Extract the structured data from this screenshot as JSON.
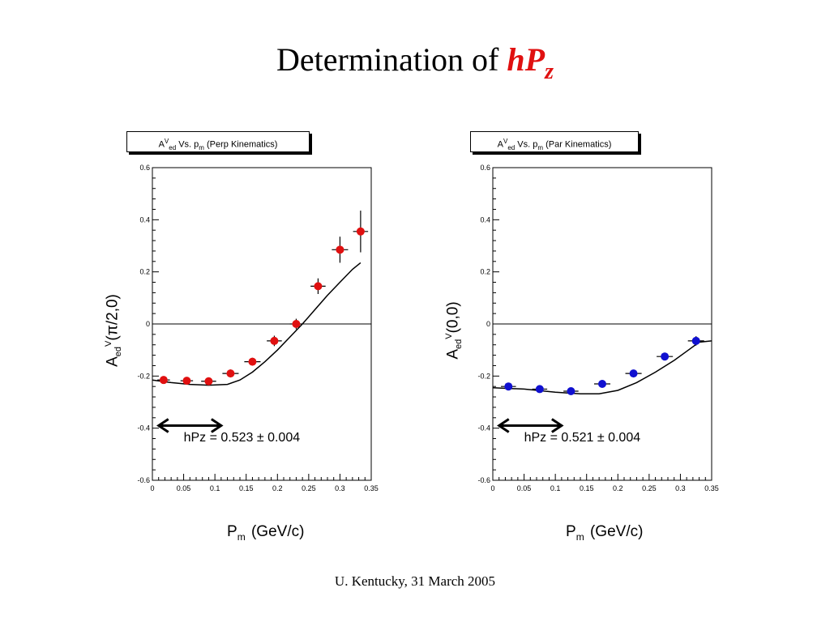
{
  "title": {
    "text": "Determination of",
    "highlight": "hP",
    "subscript": "z"
  },
  "footer": "U. Kentucky, 31 March 2005",
  "colors": {
    "left_marker": "#e01010",
    "right_marker": "#1010d0",
    "title_highlight": "#e01010"
  },
  "chart_data": [
    {
      "type": "scatter",
      "box_title": {
        "a": "A",
        "sup": "V",
        "sub": "ed",
        "mid": " Vs. p",
        "sub2": "m",
        "tail": " (Perp Kinematics)"
      },
      "ylabel": {
        "a": "A",
        "sup": "V",
        "sub": "ed",
        "arg": "(π/2,0)"
      },
      "xlabel": {
        "main": "P",
        "sub": "m",
        "unit": "(GeV/c)"
      },
      "xlim": [
        0,
        0.35
      ],
      "ylim": [
        -0.6,
        0.6
      ],
      "xticks": [
        "0",
        "0.05",
        "0.1",
        "0.15",
        "0.2",
        "0.25",
        "0.3",
        "0.35"
      ],
      "yticks": [
        "-0.6",
        "-0.4",
        "-0.2",
        "0",
        "0.2",
        "0.4",
        "0.6"
      ],
      "zero_line": true,
      "annotation": "hPz = 0.523 ± 0.004",
      "arrow": [
        0.01,
        0.11,
        -0.39
      ],
      "marker_color": "#e01010",
      "points": [
        {
          "x": 0.018,
          "y": -0.215,
          "xerr": 0.01,
          "yerr": 0.012
        },
        {
          "x": 0.055,
          "y": -0.218,
          "xerr": 0.01,
          "yerr": 0.012
        },
        {
          "x": 0.09,
          "y": -0.22,
          "xerr": 0.012,
          "yerr": 0.012
        },
        {
          "x": 0.125,
          "y": -0.19,
          "xerr": 0.013,
          "yerr": 0.015
        },
        {
          "x": 0.16,
          "y": -0.145,
          "xerr": 0.013,
          "yerr": 0.015
        },
        {
          "x": 0.195,
          "y": -0.065,
          "xerr": 0.012,
          "yerr": 0.02
        },
        {
          "x": 0.23,
          "y": 0.0,
          "xerr": 0.01,
          "yerr": 0.02
        },
        {
          "x": 0.265,
          "y": 0.145,
          "xerr": 0.012,
          "yerr": 0.03
        },
        {
          "x": 0.3,
          "y": 0.285,
          "xerr": 0.013,
          "yerr": 0.05
        },
        {
          "x": 0.333,
          "y": 0.355,
          "xerr": 0.012,
          "yerr": 0.08
        }
      ],
      "curve": [
        [
          0,
          -0.215
        ],
        [
          0.03,
          -0.225
        ],
        [
          0.06,
          -0.232
        ],
        [
          0.09,
          -0.235
        ],
        [
          0.12,
          -0.232
        ],
        [
          0.14,
          -0.215
        ],
        [
          0.16,
          -0.185
        ],
        [
          0.18,
          -0.145
        ],
        [
          0.2,
          -0.1
        ],
        [
          0.22,
          -0.05
        ],
        [
          0.24,
          0.0
        ],
        [
          0.26,
          0.055
        ],
        [
          0.28,
          0.11
        ],
        [
          0.3,
          0.16
        ],
        [
          0.32,
          0.21
        ],
        [
          0.333,
          0.235
        ]
      ]
    },
    {
      "type": "scatter",
      "box_title": {
        "a": "A",
        "sup": "V",
        "sub": "ed",
        "mid": " Vs. p",
        "sub2": "m",
        "tail": " (Par Kinematics)"
      },
      "ylabel": {
        "a": "A",
        "sup": "V",
        "sub": "ed",
        "arg": "(0,0)"
      },
      "xlabel": {
        "main": "P",
        "sub": "m",
        "unit": "(GeV/c)"
      },
      "xlim": [
        0,
        0.35
      ],
      "ylim": [
        -0.6,
        0.6
      ],
      "xticks": [
        "0",
        "0.05",
        "0.1",
        "0.15",
        "0.2",
        "0.25",
        "0.3",
        "0.35"
      ],
      "yticks": [
        "-0.6",
        "-0.4",
        "-0.2",
        "0",
        "0.2",
        "0.4",
        "0.6"
      ],
      "zero_line": true,
      "annotation": "hPz = 0.521 ± 0.004",
      "arrow": [
        0.01,
        0.11,
        -0.39
      ],
      "marker_color": "#1010d0",
      "points": [
        {
          "x": 0.025,
          "y": -0.24,
          "xerr": 0.012,
          "yerr": 0.01
        },
        {
          "x": 0.075,
          "y": -0.25,
          "xerr": 0.012,
          "yerr": 0.01
        },
        {
          "x": 0.125,
          "y": -0.258,
          "xerr": 0.012,
          "yerr": 0.01
        },
        {
          "x": 0.175,
          "y": -0.23,
          "xerr": 0.013,
          "yerr": 0.012
        },
        {
          "x": 0.225,
          "y": -0.19,
          "xerr": 0.013,
          "yerr": 0.012
        },
        {
          "x": 0.275,
          "y": -0.125,
          "xerr": 0.013,
          "yerr": 0.015
        },
        {
          "x": 0.325,
          "y": -0.065,
          "xerr": 0.013,
          "yerr": 0.018
        }
      ],
      "curve": [
        [
          0,
          -0.245
        ],
        [
          0.05,
          -0.25
        ],
        [
          0.1,
          -0.262
        ],
        [
          0.14,
          -0.268
        ],
        [
          0.17,
          -0.268
        ],
        [
          0.2,
          -0.255
        ],
        [
          0.23,
          -0.225
        ],
        [
          0.26,
          -0.185
        ],
        [
          0.29,
          -0.14
        ],
        [
          0.31,
          -0.105
        ],
        [
          0.33,
          -0.07
        ],
        [
          0.35,
          -0.065
        ]
      ]
    }
  ]
}
